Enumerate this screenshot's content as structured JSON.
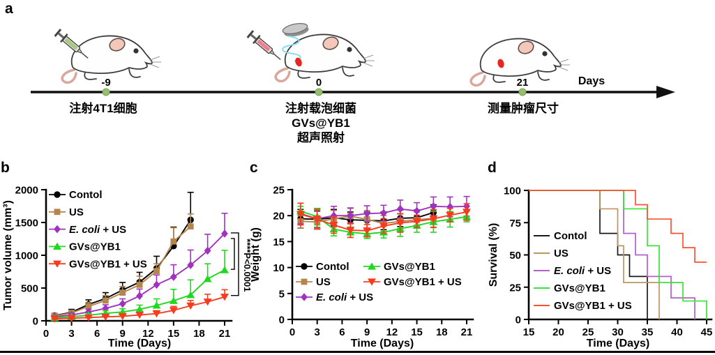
{
  "panels": {
    "a": "a",
    "b": "b",
    "c": "c",
    "d": "d"
  },
  "timeline": {
    "days_label": "Days",
    "dot_color": "#96C06E",
    "events": [
      {
        "day": "-9",
        "lines": [
          "注射4T1细胞"
        ]
      },
      {
        "day": "0",
        "lines": [
          "注射载泡细菌",
          "GVs@YB1",
          "超声照射"
        ]
      },
      {
        "day": "21",
        "lines": [
          "测量肿瘤尺寸"
        ]
      }
    ]
  },
  "chart_data": [
    {
      "panel": "b",
      "type": "line",
      "title": "",
      "xlabel": "Time (Days)",
      "ylabel": "Tumor volume (mm³)",
      "xlim": [
        0,
        21
      ],
      "ylim": [
        0,
        2000
      ],
      "xticks": [
        0,
        3,
        6,
        9,
        12,
        15,
        18,
        21
      ],
      "yticks": [
        0,
        500,
        1000,
        1500,
        2000
      ],
      "x": [
        1,
        3,
        5,
        7,
        9,
        11,
        13,
        15,
        17,
        19,
        21
      ],
      "err_dir": "up",
      "legend_position": "top-left",
      "annotation": {
        "label": "****P<0.0001"
      },
      "series": [
        {
          "name": "Contol",
          "label_parts": [
            {
              "t": "Contol"
            }
          ],
          "color": "#000000",
          "marker": "circle",
          "values": [
            80,
            130,
            250,
            340,
            470,
            590,
            800,
            1140,
            1540
          ],
          "err": [
            35,
            45,
            70,
            90,
            115,
            150,
            185,
            290,
            420
          ]
        },
        {
          "name": "US",
          "label_parts": [
            {
              "t": "US"
            }
          ],
          "color": "#B5854E",
          "marker": "square",
          "values": [
            75,
            120,
            220,
            310,
            430,
            550,
            760,
            1210,
            1440
          ],
          "err": [
            30,
            40,
            60,
            75,
            95,
            130,
            110,
            210,
            190
          ]
        },
        {
          "name": "E. coli + US",
          "label_parts": [
            {
              "t": "E. coli",
              "i": 1
            },
            {
              "t": " + US"
            }
          ],
          "color": "#A032BE",
          "marker": "diamond",
          "values": [
            60,
            90,
            135,
            190,
            260,
            380,
            550,
            670,
            850,
            1070,
            1330
          ],
          "err": [
            15,
            25,
            40,
            55,
            75,
            105,
            150,
            185,
            230,
            250,
            310
          ]
        },
        {
          "name": "GVs@YB1",
          "label_parts": [
            {
              "t": "GVs@YB1"
            }
          ],
          "color": "#21D821",
          "marker": "triangle-up",
          "values": [
            45,
            65,
            85,
            115,
            135,
            175,
            235,
            305,
            395,
            640,
            775
          ],
          "err": [
            12,
            18,
            28,
            38,
            50,
            65,
            100,
            175,
            230,
            230,
            300
          ]
        },
        {
          "name": "GVs@YB1 + US",
          "label_parts": [
            {
              "t": "GVs@YB1 + US"
            }
          ],
          "color": "#F93B1D",
          "marker": "triangle-down",
          "values": [
            30,
            40,
            50,
            60,
            70,
            90,
            110,
            160,
            230,
            290,
            365
          ],
          "err": [
            8,
            10,
            14,
            18,
            24,
            32,
            45,
            60,
            80,
            115,
            110
          ]
        }
      ]
    },
    {
      "panel": "c",
      "type": "line",
      "title": "",
      "xlabel": "Time (Days)",
      "ylabel": "Weight (g)",
      "xlim": [
        0,
        21
      ],
      "ylim": [
        0,
        25
      ],
      "xticks": [
        0,
        3,
        6,
        9,
        12,
        15,
        18,
        21
      ],
      "yticks": [
        0,
        5,
        10,
        15,
        20,
        25
      ],
      "x": [
        1,
        3,
        5,
        7,
        9,
        11,
        13,
        15,
        17,
        19,
        21
      ],
      "err_dir": "both",
      "legend_position": "bottom-left-two-columns",
      "series": [
        {
          "name": "Contol",
          "label_parts": [
            {
              "t": "Contol"
            }
          ],
          "color": "#000000",
          "marker": "circle",
          "values": [
            19.4,
            19.3,
            19.6,
            19.2,
            19.1,
            19.0,
            19.5,
            19.6,
            20.6
          ],
          "err": [
            1.8,
            1.6,
            1.6,
            1.5,
            1.6,
            1.7,
            1.6,
            1.5,
            1.5
          ]
        },
        {
          "name": "US",
          "label_parts": [
            {
              "t": "US"
            }
          ],
          "color": "#B5854E",
          "marker": "square",
          "values": [
            18.9,
            18.8,
            19.4,
            19.9,
            19.3,
            18.5,
            18.9,
            19.2,
            19.5
          ],
          "err": [
            1.3,
            1.2,
            1.6,
            1.5,
            1.7,
            1.5,
            1.4,
            1.5,
            1.7
          ]
        },
        {
          "name": "E. coli + US",
          "label_parts": [
            {
              "t": "E. coli",
              "i": 1
            },
            {
              "t": " + US"
            }
          ],
          "color": "#A032BE",
          "marker": "diamond",
          "values": [
            20.4,
            19.4,
            20.0,
            20.0,
            20.4,
            20.5,
            21.3,
            20.9,
            21.8,
            21.7,
            21.8
          ],
          "err": [
            2.0,
            2.0,
            1.8,
            1.5,
            1.5,
            1.5,
            1.7,
            1.6,
            1.8,
            1.9,
            1.9
          ]
        },
        {
          "name": "GVs@YB1",
          "label_parts": [
            {
              "t": "GVs@YB1"
            }
          ],
          "color": "#21D821",
          "marker": "triangle-up",
          "values": [
            20.9,
            19.8,
            17.4,
            16.8,
            16.5,
            16.8,
            17.5,
            18.1,
            18.8,
            19.3,
            19.8
          ],
          "err": [
            0.9,
            1.6,
            1.3,
            1.0,
            0.9,
            1.1,
            1.5,
            1.3,
            2.0,
            1.5,
            1.0
          ]
        },
        {
          "name": "GVs@YB1 + US",
          "label_parts": [
            {
              "t": "GVs@YB1 + US"
            }
          ],
          "color": "#F93B1D",
          "marker": "triangle-down",
          "values": [
            20.3,
            19.3,
            18.2,
            17.2,
            17.1,
            18.0,
            18.6,
            18.9,
            19.4,
            20.1,
            20.7
          ],
          "err": [
            2.1,
            1.9,
            1.6,
            1.4,
            1.2,
            1.4,
            1.8,
            1.2,
            1.7,
            1.3,
            1.6
          ]
        }
      ]
    },
    {
      "panel": "d",
      "type": "step",
      "title": "",
      "xlabel": "Time (Days)",
      "ylabel": "Survival (%)",
      "xlim": [
        15,
        45
      ],
      "ylim": [
        0,
        100
      ],
      "xticks": [
        15,
        20,
        25,
        30,
        35,
        40,
        45
      ],
      "yticks": [
        0,
        25,
        50,
        75,
        100
      ],
      "legend_position": "left",
      "series": [
        {
          "name": "Contol",
          "label_parts": [
            {
              "t": "Contol"
            }
          ],
          "color": "#1A1A1A",
          "steps": [
            [
              27,
              66.7
            ],
            [
              30,
              50
            ],
            [
              32,
              33.3
            ],
            [
              35,
              0
            ]
          ]
        },
        {
          "name": "US",
          "label_parts": [
            {
              "t": "US"
            }
          ],
          "color": "#C1945F",
          "steps": [
            [
              27,
              85.7
            ],
            [
              30,
              57.1
            ],
            [
              31,
              28.6
            ],
            [
              37,
              0
            ]
          ]
        },
        {
          "name": "E. coli + US",
          "label_parts": [
            {
              "t": "E. coli",
              "i": 1
            },
            {
              "t": " + US"
            }
          ],
          "color": "#B55FC8",
          "steps": [
            [
              31,
              66.7
            ],
            [
              33,
              50
            ],
            [
              35,
              33.3
            ],
            [
              39,
              16.7
            ],
            [
              43,
              0
            ]
          ]
        },
        {
          "name": "GVs@YB1",
          "label_parts": [
            {
              "t": "GVs@YB1"
            }
          ],
          "color": "#35E635",
          "steps": [
            [
              31,
              85.7
            ],
            [
              35,
              57.1
            ],
            [
              37,
              28.6
            ],
            [
              41,
              14.3
            ],
            [
              45,
              0
            ]
          ]
        },
        {
          "name": "GVs@YB1 + US",
          "label_parts": [
            {
              "t": "GVs@YB1 + US"
            }
          ],
          "color": "#F8522E",
          "steps": [
            [
              33,
              88.9
            ],
            [
              35,
              77.8
            ],
            [
              39,
              66.7
            ],
            [
              41,
              55.6
            ],
            [
              43,
              44.4
            ]
          ],
          "tail": 45
        }
      ]
    }
  ]
}
